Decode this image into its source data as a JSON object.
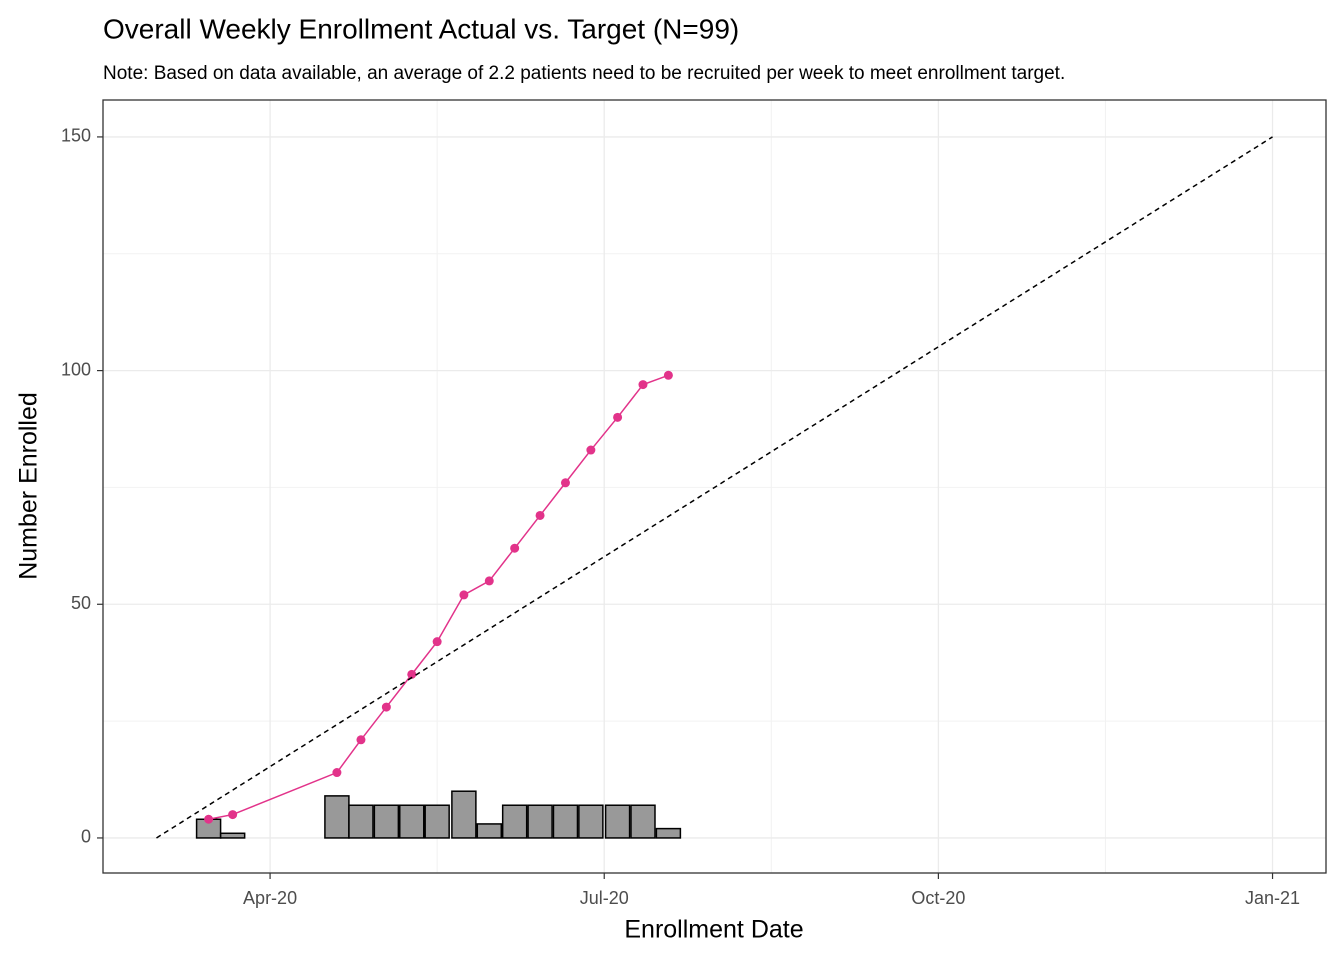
{
  "chart_data": {
    "type": "combo",
    "title": "Overall Weekly Enrollment Actual vs. Target (N=99)",
    "subtitle": "Note: Based on data available, an average of 2.2 patients need to be recruited per week to meet enrollment target.",
    "x_label": "Enrollment  Date",
    "y_label": "Number Enrolled",
    "xlim": [
      2020.125,
      2021.04
    ],
    "xticks": [
      {
        "value": 2020.25,
        "label": "Apr-20"
      },
      {
        "value": 2020.5,
        "label": "Jul-20"
      },
      {
        "value": 2020.75,
        "label": "Oct-20"
      },
      {
        "value": 2021.0,
        "label": "Jan-21"
      }
    ],
    "ylim": [
      -7.5,
      157.9
    ],
    "yticks": [
      0,
      50,
      100,
      150
    ],
    "grid": true,
    "minor_grid": true,
    "series": [
      {
        "type": "bar",
        "color": "#999999",
        "x": [
          2020.204,
          2020.222,
          2020.3,
          2020.318,
          2020.337,
          2020.356,
          2020.375,
          2020.395,
          2020.414,
          2020.433,
          2020.452,
          2020.471,
          2020.49,
          2020.51,
          2020.529,
          2020.548
        ],
        "values": [
          4,
          1,
          9,
          7,
          7,
          7,
          7,
          10,
          3,
          7,
          7,
          7,
          7,
          7,
          7,
          2
        ]
      },
      {
        "type": "line",
        "color": "#e2338a",
        "x": [
          2020.204,
          2020.222,
          2020.3,
          2020.318,
          2020.337,
          2020.356,
          2020.375,
          2020.395,
          2020.414,
          2020.433,
          2020.452,
          2020.471,
          2020.49,
          2020.51,
          2020.529,
          2020.548
        ],
        "values": [
          4,
          5,
          14,
          21,
          28,
          35,
          42,
          52,
          55,
          62,
          69,
          76,
          83,
          90,
          97,
          99
        ]
      },
      {
        "type": "dashed",
        "color": "#000000",
        "x": [
          2020.165,
          2021.0
        ],
        "values": [
          0,
          150
        ]
      }
    ]
  }
}
